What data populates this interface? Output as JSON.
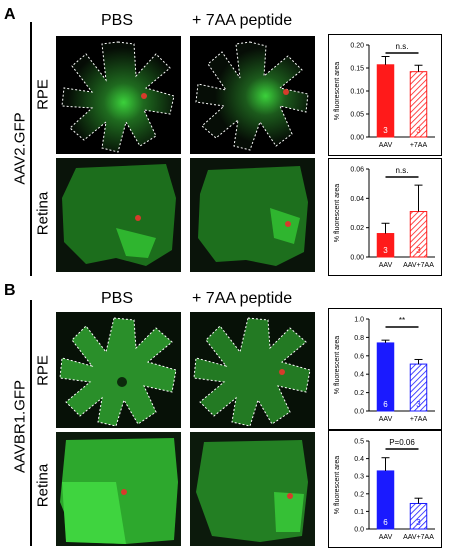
{
  "panels": [
    {
      "letter": "A",
      "group_label": "AAV2.GFP",
      "col_titles": [
        "PBS",
        "+ 7AA peptide"
      ],
      "row_labels": [
        "RPE",
        "Retina"
      ]
    },
    {
      "letter": "B",
      "group_label": "AAVBR1.GFP",
      "col_titles": [
        "PBS",
        "+ 7AA peptide"
      ],
      "row_labels": [
        "RPE",
        "Retina"
      ]
    }
  ],
  "colors": {
    "red": "#ff1a1a",
    "blue": "#1a1aff",
    "green_tissue": "#1e9e1e"
  },
  "chart_data": [
    {
      "type": "bar",
      "ylabel": "% fluorescent area",
      "categories": [
        "AAV",
        "+7AA"
      ],
      "values": [
        0.157,
        0.142
      ],
      "errors": [
        0.018,
        0.014
      ],
      "n": [
        "3",
        "3"
      ],
      "ylim": [
        0,
        0.2
      ],
      "yticks": [
        "0.00",
        "0.05",
        "0.10",
        "0.15",
        "0.20"
      ],
      "significance": "n.s.",
      "color": "#ff1a1a"
    },
    {
      "type": "bar",
      "ylabel": "% fluorescent area",
      "categories": [
        "AAV",
        "AAV+7AA"
      ],
      "values": [
        0.016,
        0.031
      ],
      "errors": [
        0.007,
        0.018
      ],
      "n": [
        "3",
        "3"
      ],
      "ylim": [
        0,
        0.06
      ],
      "yticks": [
        "0.00",
        "0.02",
        "0.04",
        "0.06"
      ],
      "significance": "n.s.",
      "color": "#ff1a1a"
    },
    {
      "type": "bar",
      "ylabel": "% fluorescent area",
      "categories": [
        "AAV",
        "+7AA"
      ],
      "values": [
        0.74,
        0.51
      ],
      "errors": [
        0.03,
        0.05
      ],
      "n": [
        "6",
        "3"
      ],
      "ylim": [
        0,
        1.0
      ],
      "yticks": [
        "0.0",
        "0.2",
        "0.4",
        "0.6",
        "0.8",
        "1.0"
      ],
      "significance": "**",
      "color": "#1a1aff"
    },
    {
      "type": "bar",
      "ylabel": "% fluorescent area",
      "categories": [
        "AAV",
        "AAV+7AA"
      ],
      "values": [
        0.33,
        0.145
      ],
      "errors": [
        0.075,
        0.03
      ],
      "n": [
        "6",
        "3"
      ],
      "ylim": [
        0,
        0.5
      ],
      "yticks": [
        "0.0",
        "0.1",
        "0.2",
        "0.3",
        "0.4",
        "0.5"
      ],
      "significance": "P=0.06",
      "color": "#1a1aff"
    }
  ]
}
